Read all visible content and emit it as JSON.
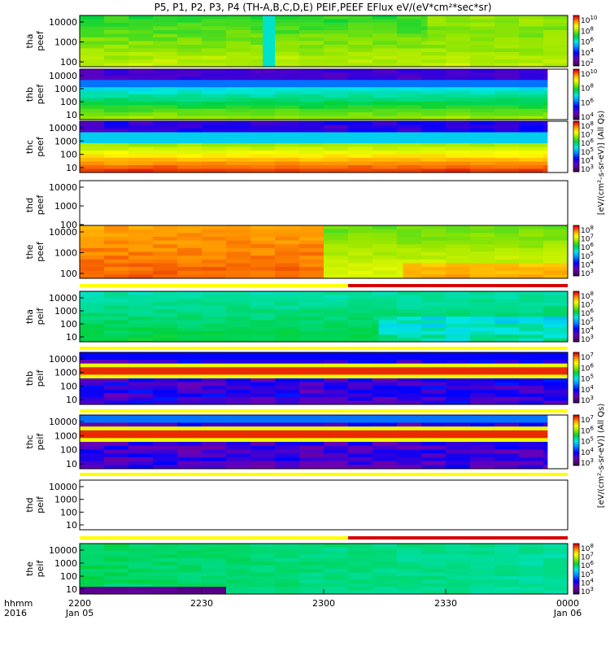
{
  "title": "P5, P1, P2, P3, P4 (TH-A,B,C,D,E) PEIF,PEEF EFlux eV/(eV*cm²*sec*sr)",
  "time_axis": {
    "row_label_1": "hhmm",
    "row_label_2": "2016",
    "ticks": [
      {
        "label": "2200",
        "sub": "Jan 05"
      },
      {
        "label": "2230",
        "sub": ""
      },
      {
        "label": "2300",
        "sub": ""
      },
      {
        "label": "2330",
        "sub": ""
      },
      {
        "label": "0000",
        "sub": "Jan 06"
      }
    ]
  },
  "colorbar_side_labels": [
    "[eV/(cm²-s-sr-eV)] (All Qs)",
    "[eV/(cm²-s-sr-eV)] (All Qs)"
  ],
  "colors": {
    "flag_yellow": "#ffff00",
    "flag_red": "#d40000"
  },
  "chart_data": {
    "type": "heatmap",
    "x_unit": "UT (hhmm)",
    "x_range": [
      "2200",
      "0000"
    ],
    "y_scale": "log",
    "colormap": "rainbow (purple-blue-cyan-green-yellow-red)",
    "panels": [
      {
        "id": "tha-peef",
        "ylabel": [
          "tha",
          "peef"
        ],
        "yticks": [
          "10000",
          "1000",
          "100"
        ],
        "cbar_ticks": [
          "10^10",
          "10^8",
          "10^6",
          "10^4",
          "10^2"
        ],
        "data_end": "0000",
        "pattern": "green-yellow high flux, gap near 2305"
      },
      {
        "id": "thb-peef",
        "ylabel": [
          "thb",
          "peef"
        ],
        "yticks": [
          "10000",
          "1000",
          "100",
          "10"
        ],
        "cbar_ticks": [
          "10^10",
          "10^8",
          "10^6",
          "10^4"
        ],
        "data_end": "2355",
        "pattern": "green-yellow low energy, purple high energy"
      },
      {
        "id": "thc-peef",
        "ylabel": [
          "thc",
          "peef"
        ],
        "yticks": [
          "10000",
          "1000",
          "100",
          "10"
        ],
        "cbar_ticks": [
          "10^8",
          "10^7",
          "10^6",
          "10^5",
          "10^4",
          "10^3"
        ],
        "data_end": "2355",
        "pattern": "red low energy, blue high energy"
      },
      {
        "id": "thd-peef",
        "ylabel": [
          "thd",
          "peef"
        ],
        "yticks": [
          "10000",
          "1000",
          "100"
        ],
        "cbar_ticks": [],
        "data_end": "none",
        "pattern": "no data"
      },
      {
        "id": "the-peef",
        "ylabel": [
          "the",
          "peef"
        ],
        "yticks": [
          "10000",
          "1000",
          "100"
        ],
        "cbar_ticks": [
          "10^8",
          "10^7",
          "10^6",
          "10^5",
          "10^4",
          "10^3"
        ],
        "data_end": "0000",
        "pattern": "red-orange early, yellow later"
      },
      {
        "id": "tha-peif",
        "ylabel": [
          "tha",
          "peif"
        ],
        "yticks": [
          "10000",
          "1000",
          "100",
          "10"
        ],
        "cbar_ticks": [
          "10^8",
          "10^7",
          "10^6",
          "10^5",
          "10^4",
          "10^3"
        ],
        "data_end": "0000",
        "pattern": "green-cyan"
      },
      {
        "id": "thb-peif",
        "ylabel": [
          "thb",
          "peif"
        ],
        "yticks": [
          "10000",
          "1000",
          "100",
          "10"
        ],
        "cbar_ticks": [
          "10^7",
          "10^6",
          "10^5",
          "10^4",
          "10^3"
        ],
        "data_end": "0000",
        "pattern": "red band near 1000 eV"
      },
      {
        "id": "thc-peif",
        "ylabel": [
          "thc",
          "peif"
        ],
        "yticks": [
          "10000",
          "1000",
          "100",
          "10"
        ],
        "cbar_ticks": [
          "10^7",
          "10^6",
          "10^5",
          "10^4",
          "10^3"
        ],
        "data_end": "2355",
        "pattern": "red band near 1000 eV"
      },
      {
        "id": "thd-peif",
        "ylabel": [
          "thd",
          "peif"
        ],
        "yticks": [
          "10000",
          "1000",
          "100",
          "10"
        ],
        "cbar_ticks": [],
        "data_end": "none",
        "pattern": "no data"
      },
      {
        "id": "the-peif",
        "ylabel": [
          "the",
          "peif"
        ],
        "yticks": [
          "10000",
          "1000",
          "100",
          "10"
        ],
        "cbar_ticks": [
          "10^8",
          "10^7",
          "10^6",
          "10^5",
          "10^4",
          "10^3"
        ],
        "data_end": "0000",
        "pattern": "green-cyan"
      }
    ],
    "flag_bars": [
      {
        "after_panel": "the-peef",
        "yellow_until": "2306",
        "red_until": "0000"
      },
      {
        "after_panel": "tha-peif",
        "yellow_until": "0000",
        "red_until": null
      },
      {
        "after_panel": "thb-peif",
        "yellow_until": "0000",
        "red_until": null
      },
      {
        "after_panel": "thc-peif",
        "yellow_until": "0000",
        "red_until": null
      },
      {
        "after_panel": "thd-peif",
        "yellow_until": "2306",
        "red_until": "0000"
      }
    ]
  }
}
